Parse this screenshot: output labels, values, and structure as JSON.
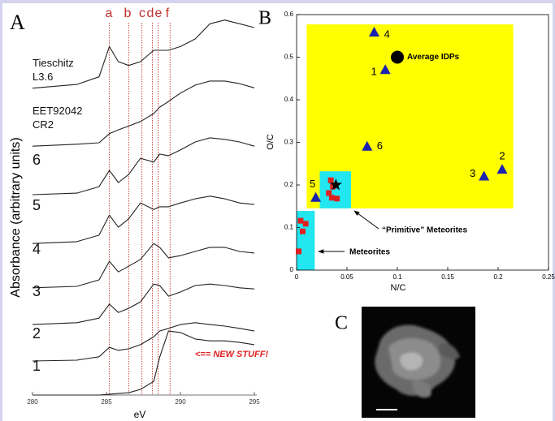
{
  "chart_data": [
    {
      "type": "line",
      "panel_label": "A",
      "x_label": "eV",
      "y_label": "Absorbance (arbitrary units)",
      "x": [
        280,
        283,
        284.5,
        285.2,
        285.8,
        286.5,
        287.3,
        288.2,
        288.6,
        289.2,
        290,
        291,
        292,
        293,
        294,
        295
      ],
      "xlim": [
        280,
        295
      ],
      "xticks": [
        280,
        285,
        290,
        295
      ],
      "ylim": [
        0,
        100
      ],
      "series": [
        {
          "name": "Tieschitz\nL3.6",
          "color": "#222222",
          "values": [
            81,
            82,
            84,
            92,
            88,
            87,
            88,
            91,
            91,
            91,
            92,
            94,
            98,
            99,
            98,
            97
          ]
        },
        {
          "name": "EET92042\nCR2",
          "color": "#222222",
          "values": [
            65.7,
            66.2,
            66.6,
            69,
            70,
            71,
            72.2,
            74.3,
            76,
            77.5,
            79.7,
            81.8,
            82.9,
            82.9,
            82.2,
            81.1
          ]
        },
        {
          "name": "6",
          "color": "#222222",
          "values": [
            52.9,
            53.3,
            55,
            59.3,
            56.1,
            58.2,
            62.5,
            61.5,
            63.6,
            63.2,
            64.7,
            66.8,
            67.9,
            67.5,
            66.8,
            65.7
          ]
        },
        {
          "name": "5",
          "color": "#222222",
          "values": [
            40,
            40.5,
            42.2,
            47.5,
            44.3,
            46.5,
            50.7,
            49,
            49.7,
            49.7,
            50.7,
            51.8,
            52.5,
            51.8,
            50.7,
            50.3
          ]
        },
        {
          "name": "4",
          "color": "#222222",
          "values": [
            28.3,
            28.7,
            30.4,
            35.3,
            32.5,
            34,
            35.8,
            40,
            39,
            36.2,
            36.8,
            37.9,
            39,
            39,
            37.9,
            37.5
          ]
        },
        {
          "name": "3",
          "color": "#222222",
          "values": [
            18.6,
            19.1,
            20.3,
            24,
            21.8,
            22.9,
            24.6,
            29.3,
            28.9,
            26.1,
            27.2,
            28.9,
            29.3,
            28.9,
            28.3,
            28
          ]
        },
        {
          "name": "2",
          "color": "#222222",
          "values": [
            9,
            9.2,
            10.1,
            12.6,
            11.8,
            12.2,
            13.3,
            15.4,
            16.9,
            17.6,
            18.6,
            19.1,
            18.6,
            18.2,
            17.6,
            16.9
          ]
        },
        {
          "name": "1",
          "color": "#222222",
          "values": [
            0,
            0,
            0,
            0.2,
            0.4,
            0.6,
            1.5,
            3.6,
            10,
            16.9,
            16.5,
            14.8,
            14.3,
            14.3,
            13.9,
            13.3
          ]
        }
      ],
      "reference_lines": {
        "labels": [
          "a",
          "b",
          "c",
          "d",
          "e",
          "f"
        ],
        "x": [
          285.2,
          286.5,
          287.4,
          288.1,
          288.5,
          289.3
        ],
        "color": "#c0302c"
      },
      "annotation": "<== NEW STUFF!"
    },
    {
      "type": "scatter",
      "panel_label": "B",
      "x_label": "N/C",
      "y_label": "O/C",
      "xlim": [
        0,
        0.25
      ],
      "xticks": [
        0,
        0.05,
        0.1,
        0.15,
        0.2,
        0.25
      ],
      "ylim": [
        0,
        0.6
      ],
      "yticks": [
        0,
        0.1,
        0.2,
        0.3,
        0.4,
        0.5,
        0.6
      ],
      "regions": [
        {
          "color": "#ffff00",
          "x": [
            0.01,
            0.215
          ],
          "y": [
            0.145,
            0.577
          ]
        },
        {
          "color": "#22e6f0",
          "x": [
            0.023,
            0.054
          ],
          "y": [
            0.145,
            0.232
          ]
        },
        {
          "color": "#22e6f0",
          "x": [
            0,
            0.018
          ],
          "y": [
            0,
            0.139
          ]
        }
      ],
      "series": [
        {
          "marker": "triangle",
          "color": "#1a22b0",
          "x": [
            0.077,
            0.088,
            0.07,
            0.186,
            0.204,
            0.019
          ],
          "y": [
            0.558,
            0.47,
            0.29,
            0.22,
            0.236,
            0.17
          ],
          "point_labels": [
            "4",
            "1",
            "6",
            "3",
            "2",
            "5"
          ]
        },
        {
          "marker": "circle",
          "color": "#000000",
          "x": [
            0.1
          ],
          "y": [
            0.5
          ],
          "point_labels": [
            "Average IDPs"
          ]
        },
        {
          "marker": "square",
          "color": "#e02020",
          "x": [
            0.034,
            0.036,
            0.032,
            0.04,
            0.035,
            0.004,
            0.009,
            0.006,
            0.002
          ],
          "y": [
            0.211,
            0.196,
            0.181,
            0.168,
            0.17,
            0.116,
            0.109,
            0.091,
            0.044
          ]
        },
        {
          "marker": "star",
          "color": "#000000",
          "x": [
            0.039
          ],
          "y": [
            0.2
          ]
        }
      ],
      "annotations": [
        "“Primitive” Meteorites",
        "Meteorites"
      ]
    }
  ],
  "image_panel": {
    "panel_label": "C"
  }
}
